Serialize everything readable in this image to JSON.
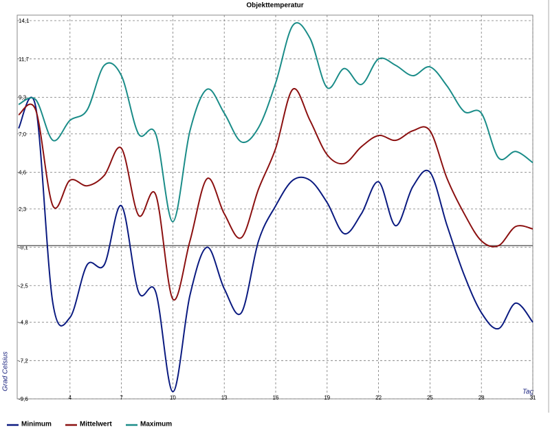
{
  "chart_data": {
    "type": "line",
    "title": "Objekttemperatur",
    "xlabel": "Tag",
    "ylabel": "Grad Celsius",
    "x": [
      1,
      2,
      3,
      4,
      5,
      6,
      7,
      8,
      9,
      10,
      11,
      12,
      13,
      14,
      15,
      16,
      17,
      18,
      19,
      20,
      21,
      22,
      23,
      24,
      25,
      26,
      27,
      28,
      29,
      30,
      31
    ],
    "series": [
      {
        "name": "Minimum",
        "color": "#0a1a80",
        "values": [
          7.35,
          8.7,
          -3.6,
          -4.5,
          -1.2,
          -1.2,
          2.5,
          -2.9,
          -2.9,
          -9.15,
          -3.1,
          -0.1,
          -2.7,
          -4.2,
          0.3,
          2.5,
          4.1,
          4.1,
          2.7,
          0.75,
          2.0,
          4.0,
          1.25,
          3.7,
          4.6,
          1.25,
          -1.85,
          -4.2,
          -5.2,
          -3.6,
          -4.8
        ]
      },
      {
        "name": "Mittelwert",
        "color": "#8b1010",
        "values": [
          8.2,
          8.5,
          2.5,
          4.1,
          3.75,
          4.4,
          6.1,
          1.9,
          3.2,
          -3.35,
          0.3,
          4.2,
          2.0,
          0.5,
          3.55,
          6.1,
          9.8,
          7.85,
          5.7,
          5.15,
          6.2,
          6.9,
          6.6,
          7.2,
          7.2,
          4.2,
          2.0,
          0.3,
          0.0,
          1.2,
          1.05
        ]
      },
      {
        "name": "Maximum",
        "color": "#1a8c88",
        "values": [
          8.85,
          9.15,
          6.6,
          7.85,
          8.5,
          11.3,
          10.65,
          7.0,
          7.0,
          1.5,
          7.2,
          9.8,
          8.3,
          6.5,
          7.4,
          10.2,
          13.8,
          13.0,
          9.9,
          11.1,
          10.1,
          11.7,
          11.3,
          10.65,
          11.2,
          10.0,
          8.4,
          8.3,
          5.5,
          5.9,
          5.2
        ]
      }
    ],
    "xlim": [
      1,
      31
    ],
    "xticks": [
      4,
      7,
      10,
      13,
      16,
      19,
      22,
      25,
      28,
      31
    ],
    "ylim": [
      -9.6,
      14.1
    ],
    "yticks": [
      {
        "value": -9.6,
        "label": "-9,6"
      },
      {
        "value": -7.2,
        "label": "-7,2"
      },
      {
        "value": -4.8,
        "label": "-4,8"
      },
      {
        "value": -2.5,
        "label": "-2,5"
      },
      {
        "value": -0.1,
        "label": "-0,1"
      },
      {
        "value": 2.3,
        "label": "2,3"
      },
      {
        "value": 4.6,
        "label": "4,6"
      },
      {
        "value": 7.0,
        "label": "7,0"
      },
      {
        "value": 9.3,
        "label": "9,3"
      },
      {
        "value": 11.7,
        "label": "11,7"
      },
      {
        "value": 14.1,
        "label": "14,1"
      }
    ],
    "grid": true
  }
}
